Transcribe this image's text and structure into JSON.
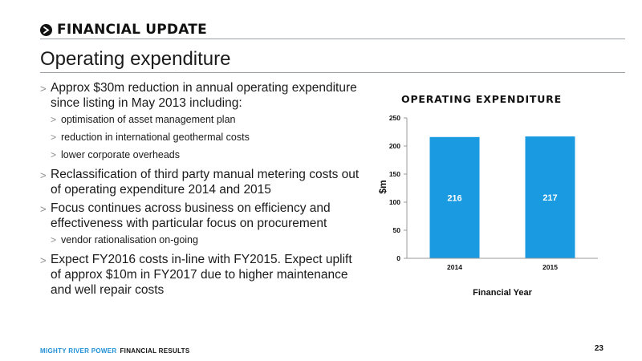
{
  "header": {
    "section_title": "FINANCIAL UPDATE",
    "page_title": "Operating expenditure"
  },
  "bullets": [
    {
      "level": 1,
      "text": "Approx $30m reduction in annual operating expenditure since listing in May 2013 including:"
    },
    {
      "level": 2,
      "text": "optimisation of asset management plan"
    },
    {
      "level": 2,
      "text": "reduction in international geothermal costs"
    },
    {
      "level": 2,
      "text": "lower corporate overheads"
    },
    {
      "level": 1,
      "text": "Reclassification of third party manual metering costs out of operating expenditure 2014 and 2015"
    },
    {
      "level": 1,
      "text": "Focus continues across business on efficiency and effectiveness with particular focus on procurement"
    },
    {
      "level": 2,
      "text": "vendor rationalisation on-going"
    },
    {
      "level": 1,
      "text": "Expect FY2016 costs in-line with FY2015. Expect uplift of approx $10m in FY2017 due to higher maintenance and well repair costs"
    }
  ],
  "bullet_marker": ">",
  "chart_data": {
    "type": "bar",
    "title": "OPERATING EXPENDITURE",
    "categories": [
      "2014",
      "2015"
    ],
    "values": [
      216,
      217
    ],
    "data_labels": [
      "216",
      "217"
    ],
    "xlabel": "Financial Year",
    "ylabel": "$m",
    "ylim": [
      0,
      250
    ],
    "yticks": [
      0,
      50,
      100,
      150,
      200,
      250
    ],
    "bar_color": "#1a9ae0",
    "label_color": "#ffffff",
    "grid": false
  },
  "footer": {
    "brand": "MIGHTY RIVER POWER",
    "subtitle": "FINANCIAL RESULTS",
    "page_number": "23"
  },
  "colors": {
    "brand": "#1f8fd6",
    "rule": "#9aa0a6"
  }
}
